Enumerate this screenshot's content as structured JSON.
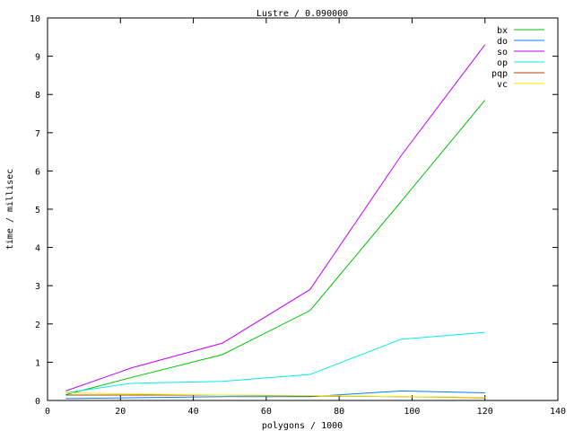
{
  "chart_data": {
    "type": "line",
    "title": "Lustre / 0.090000",
    "xlabel": "polygons / 1000",
    "ylabel": "time / millisec",
    "xlim": [
      0,
      140
    ],
    "ylim": [
      0,
      10
    ],
    "xticks": [
      0,
      20,
      40,
      60,
      80,
      100,
      120,
      140
    ],
    "yticks": [
      0,
      1,
      2,
      3,
      4,
      5,
      6,
      7,
      8,
      9,
      10
    ],
    "grid": false,
    "legend": "top-right",
    "x": [
      5,
      23,
      48,
      72,
      97,
      120
    ],
    "series": [
      {
        "name": "bx",
        "color": "#00c000",
        "values": [
          0.15,
          0.6,
          1.2,
          2.35,
          5.2,
          7.85
        ]
      },
      {
        "name": "do",
        "color": "#0080ff",
        "values": [
          0.05,
          0.07,
          0.1,
          0.1,
          0.25,
          0.2
        ]
      },
      {
        "name": "so",
        "color": "#c000ff",
        "values": [
          0.25,
          0.85,
          1.5,
          2.9,
          6.4,
          9.3
        ]
      },
      {
        "name": "op",
        "color": "#00eeee",
        "values": [
          0.2,
          0.45,
          0.5,
          0.68,
          1.6,
          1.78
        ]
      },
      {
        "name": "pqp",
        "color": "#c04000",
        "values": [
          0.14,
          0.14,
          0.14,
          0.12,
          0.1,
          0.07
        ]
      },
      {
        "name": "vc",
        "color": "#eeee00",
        "values": [
          0.2,
          0.17,
          0.14,
          0.13,
          0.1,
          0.08
        ]
      }
    ]
  }
}
